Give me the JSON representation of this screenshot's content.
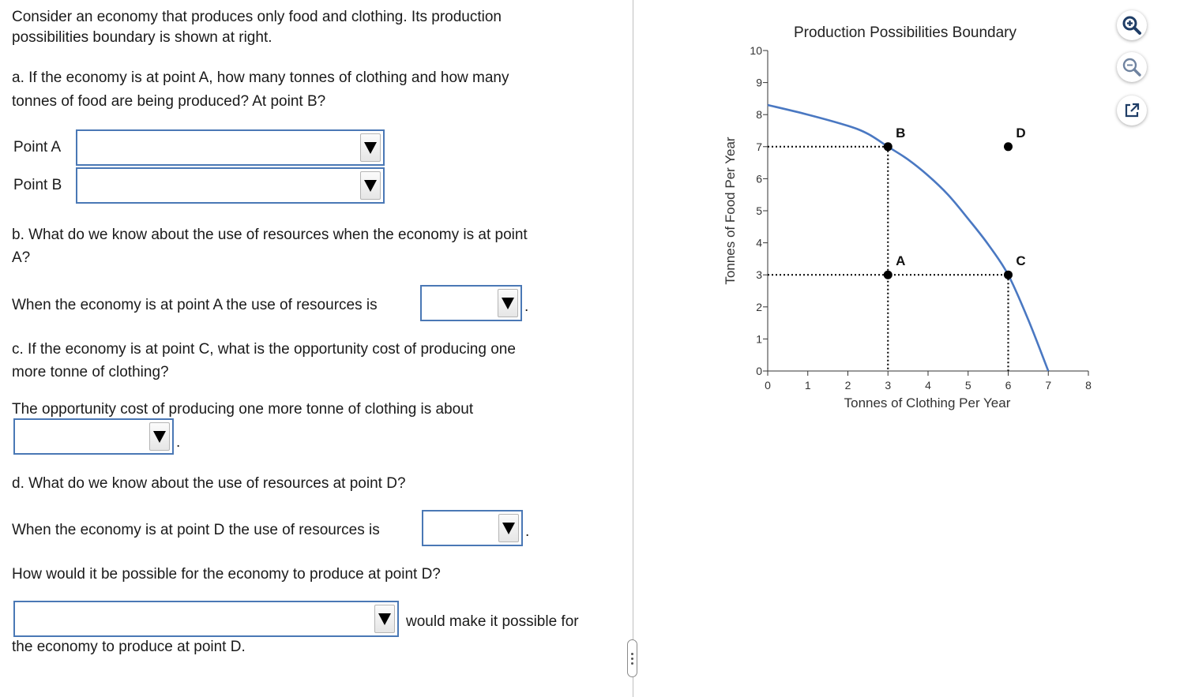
{
  "question": {
    "intro_line1": "Consider an economy that produces only food and clothing. Its production",
    "intro_line2": "possibilities boundary is shown at right.",
    "a_line1": "a. If the economy is at point A, how many tonnes of clothing and how many",
    "a_line2": "tonnes of food are being produced? At point B?",
    "point_a_label": "Point A",
    "point_b_label": "Point B",
    "b_line1": "b. What do we know about the use of resources when the economy is at point",
    "b_line2": "A?",
    "b_answer_prefix": "When the economy is at point A the use of resources is",
    "c_line1": "c. If the economy is at point C, what is the opportunity cost of producing one",
    "c_line2": "more tonne of clothing?",
    "c_answer_prefix": "The opportunity cost of producing one more tonne of clothing is about",
    "d_line1": "d. What do we know about the use of resources at point D?",
    "d_answer_prefix": "When the economy is at point D the use of resources is",
    "d_how": "How would it be possible for the economy to produce at point D?",
    "d_possible_suffix": "would make it possible for",
    "d_possible_line2": "the economy to produce at point D.",
    "period": "."
  },
  "dropdowns": {
    "point_a": "",
    "point_b": "",
    "resources_a": "",
    "opportunity_cost": "",
    "resources_d": "",
    "possible_d": ""
  },
  "chart_data": {
    "type": "line",
    "title": "Production Possibilities Boundary",
    "xlabel": "Tonnes of Clothing Per Year",
    "ylabel": "Tonnes of Food Per Year",
    "xlim": [
      0,
      8
    ],
    "ylim": [
      0,
      10
    ],
    "x_ticks": [
      0,
      1,
      2,
      3,
      4,
      5,
      6,
      7,
      8
    ],
    "y_ticks": [
      0,
      1,
      2,
      3,
      4,
      5,
      6,
      7,
      8,
      9,
      10
    ],
    "grid": false,
    "curve": {
      "x": [
        0,
        1,
        2,
        2.5,
        3,
        3.5,
        4,
        4.5,
        5,
        5.5,
        6,
        6.5,
        7
      ],
      "y": [
        8.3,
        8.0,
        7.65,
        7.4,
        7.0,
        6.6,
        6.1,
        5.5,
        4.75,
        3.95,
        3.0,
        1.6,
        0
      ],
      "color": "#4a78c2"
    },
    "points": [
      {
        "label": "B",
        "x": 3,
        "y": 7
      },
      {
        "label": "A",
        "x": 3,
        "y": 3
      },
      {
        "label": "C",
        "x": 6,
        "y": 3
      },
      {
        "label": "D",
        "x": 6,
        "y": 7
      }
    ],
    "guides": [
      {
        "from": [
          0,
          7
        ],
        "to": [
          3,
          7
        ]
      },
      {
        "from": [
          3,
          7
        ],
        "to": [
          3,
          0
        ]
      },
      {
        "from": [
          0,
          3
        ],
        "to": [
          6,
          3
        ]
      },
      {
        "from": [
          6,
          3
        ],
        "to": [
          6,
          0
        ]
      }
    ]
  },
  "toolbar": {
    "zoom_in_icon": "zoom-in-icon",
    "zoom_out_icon": "zoom-out-icon",
    "popout_icon": "external-link-icon"
  }
}
